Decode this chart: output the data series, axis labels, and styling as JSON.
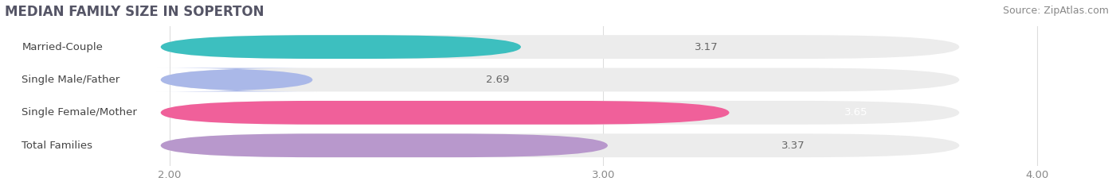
{
  "title": "MEDIAN FAMILY SIZE IN SOPERTON",
  "source": "Source: ZipAtlas.com",
  "categories": [
    "Married-Couple",
    "Single Male/Father",
    "Single Female/Mother",
    "Total Families"
  ],
  "values": [
    3.17,
    2.69,
    3.65,
    3.37
  ],
  "bar_colors": [
    "#3dbfbf",
    "#aab8e8",
    "#f0609a",
    "#b898cc"
  ],
  "bar_bg_colors": [
    "#ececec",
    "#ececec",
    "#ececec",
    "#ececec"
  ],
  "xlim": [
    1.62,
    4.18
  ],
  "xstart": 1.62,
  "xticks": [
    2.0,
    3.0,
    4.0
  ],
  "xtick_labels": [
    "2.00",
    "3.00",
    "4.00"
  ],
  "label_fontsize": 9.5,
  "value_fontsize": 9.5,
  "title_fontsize": 12,
  "source_fontsize": 9,
  "bar_height": 0.72,
  "background_color": "#ffffff",
  "title_color": "#555566",
  "source_color": "#888888",
  "tick_color": "#888888",
  "grid_color": "#dddddd",
  "label_text_color": "#444444",
  "value_inside_color": "#ffffff",
  "value_outside_color": "#666666"
}
